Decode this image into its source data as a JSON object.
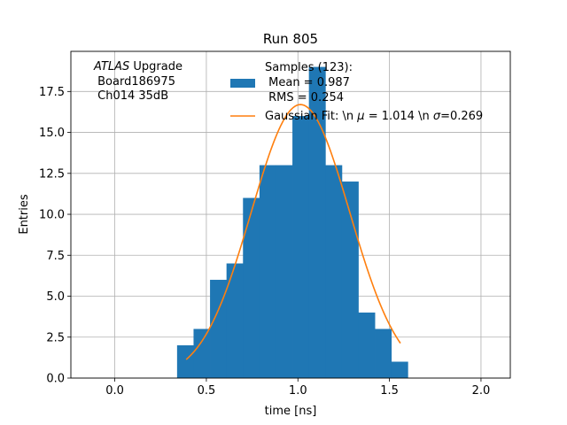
{
  "chart_data": {
    "type": "bar",
    "title": "Run 805",
    "xlabel": "time [ns]",
    "ylabel": "Entries",
    "xlim": [
      -0.24,
      2.16
    ],
    "ylim": [
      0,
      19.95
    ],
    "grid": true,
    "colors": {
      "hist": "#1f77b4",
      "fit": "#ff7f0e"
    },
    "xticks": [
      0.0,
      0.5,
      1.0,
      1.5,
      2.0
    ],
    "xtick_labels": [
      "0.0",
      "0.5",
      "1.0",
      "1.5",
      "2.0"
    ],
    "yticks": [
      0.0,
      2.5,
      5.0,
      7.5,
      10.0,
      12.5,
      15.0,
      17.5
    ],
    "ytick_labels": [
      "0.0",
      "2.5",
      "5.0",
      "7.5",
      "10.0",
      "12.5",
      "15.0",
      "17.5"
    ],
    "histogram": {
      "name": "Samples (123):\n Mean = 0.987\n RMS = 0.254",
      "bin_edges": [
        0.34,
        0.43,
        0.52,
        0.61,
        0.7,
        0.79,
        0.88,
        0.97,
        1.06,
        1.15,
        1.24,
        1.33,
        1.42,
        1.51,
        1.6
      ],
      "counts": [
        2,
        3,
        6,
        7,
        11,
        13,
        13,
        16,
        19,
        13,
        12,
        4,
        3,
        1
      ]
    },
    "fit": {
      "name": "Gaussian Fit: \\n $\\mu$ = 1.014 \\n $\\sigma$=0.269",
      "mu": 1.014,
      "sigma": 0.269,
      "amplitude": 16.7,
      "x_range": [
        0.39,
        1.56
      ]
    },
    "legend_position": "top-center",
    "annotation_lines": [
      "ATLAS Upgrade",
      " Board186975",
      " Ch014 35dB"
    ]
  },
  "legend": {
    "hist_label_lines": [
      "Samples (123):",
      " Mean = 0.987",
      " RMS = 0.254"
    ],
    "fit_label_prefix": "Gaussian Fit: \\n ",
    "fit_mu_symbol": "μ",
    "fit_label_mid": " = 1.014 \\n ",
    "fit_sigma_symbol": "σ",
    "fit_label_end": "=0.269"
  },
  "annotation": {
    "atlas": "ATLAS",
    "upgrade": " Upgrade",
    "board": " Board186975",
    "channel": " Ch014 35dB"
  }
}
